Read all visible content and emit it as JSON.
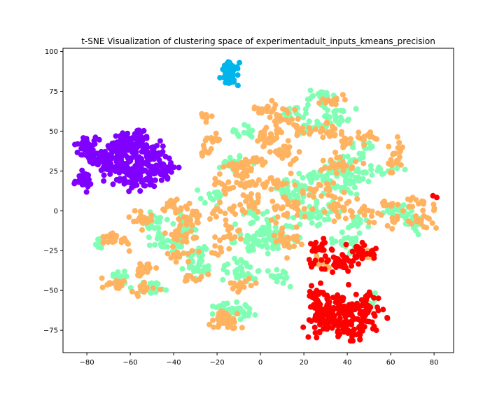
{
  "chart_data": {
    "type": "scatter",
    "title": "t-SNE Visualization of clustering space of experimentadult_inputs_kmeans_precision",
    "xlabel": "",
    "ylabel": "",
    "xlim": [
      -91,
      89
    ],
    "ylim": [
      -89,
      102
    ],
    "xticks": [
      -80,
      -60,
      -40,
      -20,
      0,
      20,
      40,
      60,
      80
    ],
    "yticks": [
      -75,
      -50,
      -25,
      0,
      25,
      50,
      75,
      100
    ],
    "xtick_labels": [
      "−80",
      "−60",
      "−40",
      "−20",
      "0",
      "20",
      "40",
      "60",
      "80"
    ],
    "ytick_labels": [
      "−75",
      "−50",
      "−25",
      "0",
      "25",
      "50",
      "75",
      "100"
    ],
    "grid": false,
    "legend": "none",
    "colors": {
      "purple": "#8000ff",
      "sky": "#00b5eb",
      "mint": "#80ffb4",
      "orange": "#ffb360",
      "red": "#ff0000"
    },
    "series": [
      {
        "color": "#8000ff",
        "blobs": [
          {
            "cx": -80,
            "cy": 40,
            "sx": 3,
            "sy": 4,
            "n": 40
          },
          {
            "cx": -73,
            "cy": 32,
            "sx": 3,
            "sy": 3,
            "n": 40
          },
          {
            "cx": -64,
            "cy": 40,
            "sx": 4,
            "sy": 4,
            "n": 60
          },
          {
            "cx": -58,
            "cy": 46,
            "sx": 4,
            "sy": 3,
            "n": 40
          },
          {
            "cx": -66,
            "cy": 28,
            "sx": 4,
            "sy": 4,
            "n": 50
          },
          {
            "cx": -58,
            "cy": 20,
            "sx": 4,
            "sy": 4,
            "n": 50
          },
          {
            "cx": -46,
            "cy": 27,
            "sx": 4,
            "sy": 5,
            "n": 55
          },
          {
            "cx": -52,
            "cy": 38,
            "sx": 3,
            "sy": 3,
            "n": 30
          },
          {
            "cx": -82,
            "cy": 19,
            "sx": 2,
            "sy": 2.5,
            "n": 35
          },
          {
            "cx": -55,
            "cy": 30,
            "sx": 5,
            "sy": 5,
            "n": 40
          }
        ]
      },
      {
        "color": "#00b5eb",
        "blobs": [
          {
            "cx": -14,
            "cy": 86,
            "sx": 2,
            "sy": 3.5,
            "n": 60
          }
        ]
      },
      {
        "color": "#80ffb4",
        "blobs": [
          {
            "cx": 28,
            "cy": 72,
            "sx": 3,
            "sy": 2,
            "n": 25
          },
          {
            "cx": 35,
            "cy": 60,
            "sx": 3,
            "sy": 3,
            "n": 25
          },
          {
            "cx": 24,
            "cy": 52,
            "sx": 3,
            "sy": 2,
            "n": 18
          },
          {
            "cx": -8,
            "cy": 50,
            "sx": 3,
            "sy": 2,
            "n": 15
          },
          {
            "cx": -12,
            "cy": 30,
            "sx": 3,
            "sy": 3,
            "n": 20
          },
          {
            "cx": 40,
            "cy": 28,
            "sx": 5,
            "sy": 4,
            "n": 40
          },
          {
            "cx": 40,
            "cy": 18,
            "sx": 4,
            "sy": 4,
            "n": 40
          },
          {
            "cx": 25,
            "cy": 20,
            "sx": 3,
            "sy": 3,
            "n": 15
          },
          {
            "cx": 15,
            "cy": 12,
            "sx": 6,
            "sy": 4,
            "n": 40
          },
          {
            "cx": 22,
            "cy": -2,
            "sx": 4,
            "sy": 4,
            "n": 25
          },
          {
            "cx": 30,
            "cy": -1,
            "sx": 4,
            "sy": 3,
            "n": 20
          },
          {
            "cx": 43,
            "cy": -8,
            "sx": 3,
            "sy": 3,
            "n": 15
          },
          {
            "cx": 63,
            "cy": 0,
            "sx": 3,
            "sy": 3,
            "n": 25
          },
          {
            "cx": 70,
            "cy": -7,
            "sx": 3,
            "sy": 3,
            "n": 25
          },
          {
            "cx": 3,
            "cy": -12,
            "sx": 4,
            "sy": 4,
            "n": 30
          },
          {
            "cx": 7,
            "cy": -18,
            "sx": 5,
            "sy": 4,
            "n": 40
          },
          {
            "cx": -6,
            "cy": -20,
            "sx": 4,
            "sy": 3,
            "n": 20
          },
          {
            "cx": -10,
            "cy": -37,
            "sx": 4,
            "sy": 4,
            "n": 30
          },
          {
            "cx": 8,
            "cy": -42,
            "sx": 4,
            "sy": 3,
            "n": 20
          },
          {
            "cx": -42,
            "cy": -20,
            "sx": 4,
            "sy": 3,
            "n": 30
          },
          {
            "cx": -35,
            "cy": -10,
            "sx": 4,
            "sy": 4,
            "n": 25
          },
          {
            "cx": -49,
            "cy": -7,
            "sx": 3,
            "sy": 3,
            "n": 20
          },
          {
            "cx": -50,
            "cy": -48,
            "sx": 4,
            "sy": 2,
            "n": 20
          },
          {
            "cx": -28,
            "cy": -36,
            "sx": 3,
            "sy": 3,
            "n": 25
          },
          {
            "cx": -28,
            "cy": -26,
            "sx": 3,
            "sy": 2,
            "n": 15
          },
          {
            "cx": -65,
            "cy": -42,
            "sx": 2,
            "sy": 3,
            "n": 12
          },
          {
            "cx": -75,
            "cy": -20,
            "sx": 2,
            "sy": 2,
            "n": 10
          },
          {
            "cx": -9,
            "cy": -62,
            "sx": 4,
            "sy": 3,
            "n": 25
          },
          {
            "cx": -18,
            "cy": -60,
            "sx": 2,
            "sy": 2,
            "n": 10
          },
          {
            "cx": 40,
            "cy": -20,
            "sx": 4,
            "sy": 3,
            "n": 25
          },
          {
            "cx": 52,
            "cy": -54,
            "sx": 2,
            "sy": 2,
            "n": 10
          },
          {
            "cx": 16,
            "cy": 62,
            "sx": 3,
            "sy": 3,
            "n": 15
          },
          {
            "cx": 48,
            "cy": 40,
            "sx": 3,
            "sy": 2,
            "n": 12
          },
          {
            "cx": 57,
            "cy": 25,
            "sx": 3,
            "sy": 2,
            "n": 10
          },
          {
            "cx": -22,
            "cy": 10,
            "sx": 3,
            "sy": 3,
            "n": 15
          },
          {
            "cx": -2,
            "cy": -2,
            "sx": 3,
            "sy": 3,
            "n": 15
          }
        ]
      },
      {
        "color": "#ffb360",
        "blobs": [
          {
            "cx": 2,
            "cy": 64,
            "sx": 3,
            "sy": 2,
            "n": 15
          },
          {
            "cx": 10,
            "cy": 58,
            "sx": 3,
            "sy": 4,
            "n": 25
          },
          {
            "cx": 2,
            "cy": 45,
            "sx": 3,
            "sy": 3,
            "n": 20
          },
          {
            "cx": 18,
            "cy": 52,
            "sx": 2,
            "sy": 3,
            "n": 12
          },
          {
            "cx": 33,
            "cy": 70,
            "sx": 3,
            "sy": 2,
            "n": 15
          },
          {
            "cx": 30,
            "cy": 48,
            "sx": 3,
            "sy": 3,
            "n": 15
          },
          {
            "cx": 38,
            "cy": 46,
            "sx": 3,
            "sy": 3,
            "n": 15
          },
          {
            "cx": 49,
            "cy": 46,
            "sx": 3,
            "sy": 2,
            "n": 15
          },
          {
            "cx": -26,
            "cy": 58,
            "sx": 2,
            "sy": 2,
            "n": 8
          },
          {
            "cx": -22,
            "cy": 45,
            "sx": 2,
            "sy": 2,
            "n": 12
          },
          {
            "cx": -24,
            "cy": 38,
            "sx": 2,
            "sy": 2,
            "n": 8
          },
          {
            "cx": -9,
            "cy": 28,
            "sx": 4,
            "sy": 3,
            "n": 30
          },
          {
            "cx": -2,
            "cy": 32,
            "sx": 2,
            "sy": 2,
            "n": 10
          },
          {
            "cx": 11,
            "cy": 36,
            "sx": 3,
            "sy": 3,
            "n": 25
          },
          {
            "cx": 36,
            "cy": 30,
            "sx": 4,
            "sy": 3,
            "n": 25
          },
          {
            "cx": 62,
            "cy": 32,
            "sx": 2,
            "sy": 6,
            "n": 25
          },
          {
            "cx": 8,
            "cy": 16,
            "sx": 4,
            "sy": 3,
            "n": 20
          },
          {
            "cx": 13,
            "cy": 3,
            "sx": 5,
            "sy": 4,
            "n": 30
          },
          {
            "cx": 27,
            "cy": 12,
            "sx": 4,
            "sy": 3,
            "n": 20
          },
          {
            "cx": -6,
            "cy": 18,
            "sx": 3,
            "sy": 3,
            "n": 15
          },
          {
            "cx": -16,
            "cy": 16,
            "sx": 3,
            "sy": 3,
            "n": 15
          },
          {
            "cx": -5,
            "cy": 5,
            "sx": 3,
            "sy": 3,
            "n": 20
          },
          {
            "cx": -18,
            "cy": 0,
            "sx": 3,
            "sy": 3,
            "n": 15
          },
          {
            "cx": 36,
            "cy": 2,
            "sx": 4,
            "sy": 4,
            "n": 25
          },
          {
            "cx": 48,
            "cy": 0,
            "sx": 3,
            "sy": 3,
            "n": 15
          },
          {
            "cx": 58,
            "cy": 5,
            "sx": 3,
            "sy": 2,
            "n": 12
          },
          {
            "cx": 74,
            "cy": -2,
            "sx": 4,
            "sy": 6,
            "n": 30
          },
          {
            "cx": -33,
            "cy": -4,
            "sx": 3,
            "sy": 3,
            "n": 25
          },
          {
            "cx": -41,
            "cy": 4,
            "sx": 3,
            "sy": 2,
            "n": 15
          },
          {
            "cx": -55,
            "cy": -5,
            "sx": 3,
            "sy": 3,
            "n": 20
          },
          {
            "cx": -36,
            "cy": -16,
            "sx": 4,
            "sy": 3,
            "n": 20
          },
          {
            "cx": -70,
            "cy": -18,
            "sx": 2,
            "sy": 3,
            "n": 15
          },
          {
            "cx": -63,
            "cy": -20,
            "sx": 2,
            "sy": 2,
            "n": 8
          },
          {
            "cx": -53,
            "cy": -37,
            "sx": 2,
            "sy": 4,
            "n": 20
          },
          {
            "cx": -67,
            "cy": -46,
            "sx": 3,
            "sy": 2,
            "n": 15
          },
          {
            "cx": -54,
            "cy": -50,
            "sx": 3,
            "sy": 2,
            "n": 12
          },
          {
            "cx": -37,
            "cy": -28,
            "sx": 3,
            "sy": 2,
            "n": 15
          },
          {
            "cx": -30,
            "cy": -42,
            "sx": 3,
            "sy": 2,
            "n": 12
          },
          {
            "cx": -14,
            "cy": -14,
            "sx": 3,
            "sy": 3,
            "n": 15
          },
          {
            "cx": 12,
            "cy": -18,
            "sx": 3,
            "sy": 4,
            "n": 25
          },
          {
            "cx": -8,
            "cy": -46,
            "sx": 3,
            "sy": 2,
            "n": 15
          },
          {
            "cx": -18,
            "cy": -68,
            "sx": 3,
            "sy": 3,
            "n": 25
          },
          {
            "cx": -12,
            "cy": -70,
            "sx": 2,
            "sy": 2,
            "n": 12
          },
          {
            "cx": 28,
            "cy": -32,
            "sx": 3,
            "sy": 3,
            "n": 15
          },
          {
            "cx": 46,
            "cy": -28,
            "sx": 3,
            "sy": 3,
            "n": 15
          },
          {
            "cx": 62,
            "cy": -6,
            "sx": 2,
            "sy": 2,
            "n": 8
          },
          {
            "cx": -20,
            "cy": -25,
            "sx": 2,
            "sy": 2,
            "n": 8
          }
        ]
      },
      {
        "color": "#ff0000",
        "blobs": [
          {
            "cx": 28,
            "cy": -68,
            "sx": 4,
            "sy": 5,
            "n": 50
          },
          {
            "cx": 38,
            "cy": -66,
            "sx": 4,
            "sy": 6,
            "n": 60
          },
          {
            "cx": 48,
            "cy": -62,
            "sx": 4,
            "sy": 6,
            "n": 60
          },
          {
            "cx": 34,
            "cy": -58,
            "sx": 5,
            "sy": 4,
            "n": 35
          },
          {
            "cx": 44,
            "cy": -74,
            "sx": 4,
            "sy": 3,
            "n": 25
          },
          {
            "cx": 25,
            "cy": -52,
            "sx": 2,
            "sy": 3,
            "n": 15
          },
          {
            "cx": 27,
            "cy": -23,
            "sx": 3,
            "sy": 2,
            "n": 20
          },
          {
            "cx": 36,
            "cy": -33,
            "sx": 4,
            "sy": 3,
            "n": 35
          },
          {
            "cx": 46,
            "cy": -26,
            "sx": 3,
            "sy": 3,
            "n": 20
          },
          {
            "cx": 52,
            "cy": -27,
            "sx": 2,
            "sy": 2,
            "n": 10
          },
          {
            "cx": 26,
            "cy": -33,
            "sx": 2,
            "sy": 2,
            "n": 10
          },
          {
            "cx": 80,
            "cy": 9,
            "sx": 0.5,
            "sy": 0.5,
            "n": 2
          }
        ]
      }
    ]
  }
}
